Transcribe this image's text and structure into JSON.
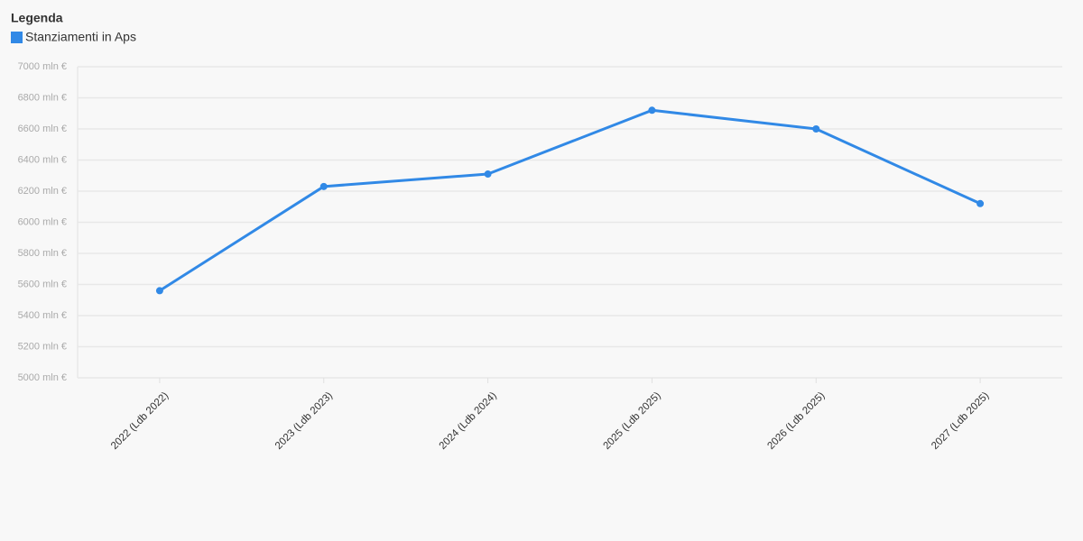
{
  "chart_data": {
    "type": "line",
    "legend_title": "Legenda",
    "categories": [
      "2022 (Ldb 2022)",
      "2023 (Ldb 2023)",
      "2024 (Ldb 2024)",
      "2025 (Ldb 2025)",
      "2026 (Ldb 2025)",
      "2027 (Ldb 2025)"
    ],
    "series": [
      {
        "name": "Stanziamenti in Aps",
        "color": "#3189e6",
        "values": [
          5560,
          6230,
          6310,
          6720,
          6600,
          6120
        ]
      }
    ],
    "ylim": [
      5000,
      7000
    ],
    "yticks": [
      {
        "value": 5000,
        "label": "5000 mln €"
      },
      {
        "value": 5200,
        "label": "5200 mln €"
      },
      {
        "value": 5400,
        "label": "5400 mln €"
      },
      {
        "value": 5600,
        "label": "5600 mln €"
      },
      {
        "value": 5800,
        "label": "5800 mln €"
      },
      {
        "value": 6000,
        "label": "6000 mln €"
      },
      {
        "value": 6200,
        "label": "6200 mln €"
      },
      {
        "value": 6400,
        "label": "6400 mln €"
      },
      {
        "value": 6600,
        "label": "6600 mln €"
      },
      {
        "value": 6800,
        "label": "6800 mln €"
      },
      {
        "value": 7000,
        "label": "7000 mln €"
      }
    ],
    "grid": true,
    "legend": "top-left"
  }
}
